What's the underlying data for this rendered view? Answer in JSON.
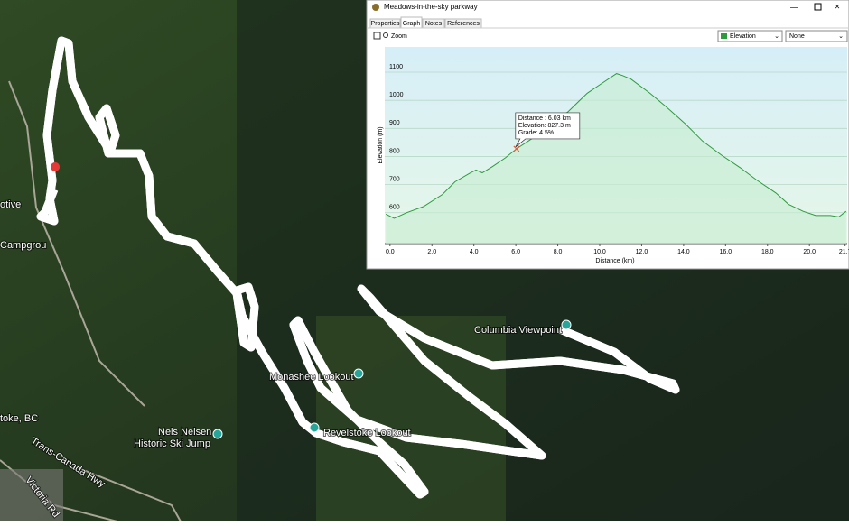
{
  "window": {
    "title": "Meadows-in-the-sky parkway",
    "tabs": [
      "Properties",
      "Graph",
      "Notes",
      "References"
    ],
    "zoom": "Zoom",
    "compare_select": "None"
  },
  "chart_data": {
    "type": "line",
    "x_label": "Distance  (km)",
    "y_label": "Elevation (m)",
    "x": [
      -0.2,
      0.2,
      0.8,
      1.6,
      2.5,
      3.1,
      3.8,
      4.1,
      4.4,
      4.9,
      5.5,
      6.03,
      6.8,
      7.6,
      8.5,
      9.4,
      10.0,
      10.8,
      11.1,
      11.5,
      12.4,
      13.2,
      14.1,
      14.9,
      15.8,
      16.7,
      17.5,
      18.4,
      19.0,
      19.7,
      20.3,
      21.0,
      21.4,
      21.75
    ],
    "series": [
      {
        "name": "Elevation",
        "color": "#2e9a3e",
        "values": [
          595,
          580,
          600,
          622,
          665,
          710,
          740,
          752,
          742,
          765,
          795,
          827.3,
          865,
          910,
          960,
          1025,
          1055,
          1095,
          1088,
          1075,
          1025,
          975,
          915,
          855,
          805,
          760,
          715,
          670,
          630,
          605,
          590,
          590,
          585,
          605
        ]
      }
    ],
    "xlim": [
      -0.25,
      21.8
    ],
    "ylim": [
      490,
      1190
    ],
    "xticks": [
      {
        "value": 0,
        "label": "0.0"
      },
      {
        "value": 2,
        "label": "2.0"
      },
      {
        "value": 4,
        "label": "4.0"
      },
      {
        "value": 6,
        "label": "6.0"
      },
      {
        "value": 8,
        "label": "8.0"
      },
      {
        "value": 10,
        "label": "10.0"
      },
      {
        "value": 12,
        "label": "12.0"
      },
      {
        "value": 14,
        "label": "14.0"
      },
      {
        "value": 16,
        "label": "16.0"
      },
      {
        "value": 18,
        "label": "18.0"
      },
      {
        "value": 20,
        "label": "20.0"
      },
      {
        "value": 21.7,
        "label": "21.7"
      }
    ],
    "yticks": [
      600,
      700,
      800,
      900,
      1000,
      1100
    ],
    "grid": true,
    "tooltip": [
      "Distance : 6.03 km",
      "Elevation: 827.3 m",
      "Grade: 4.5%"
    ]
  },
  "map": {
    "labels": [
      "otive",
      "Campgrou",
      "toke, BC",
      "Nels Nelsen",
      "Historic Ski Jump",
      "Trans-Canada Hwy",
      "Victoria Rd",
      "Monashee Lookout",
      "Revelstoke Lookout",
      "Columbia Viewpoint"
    ]
  }
}
